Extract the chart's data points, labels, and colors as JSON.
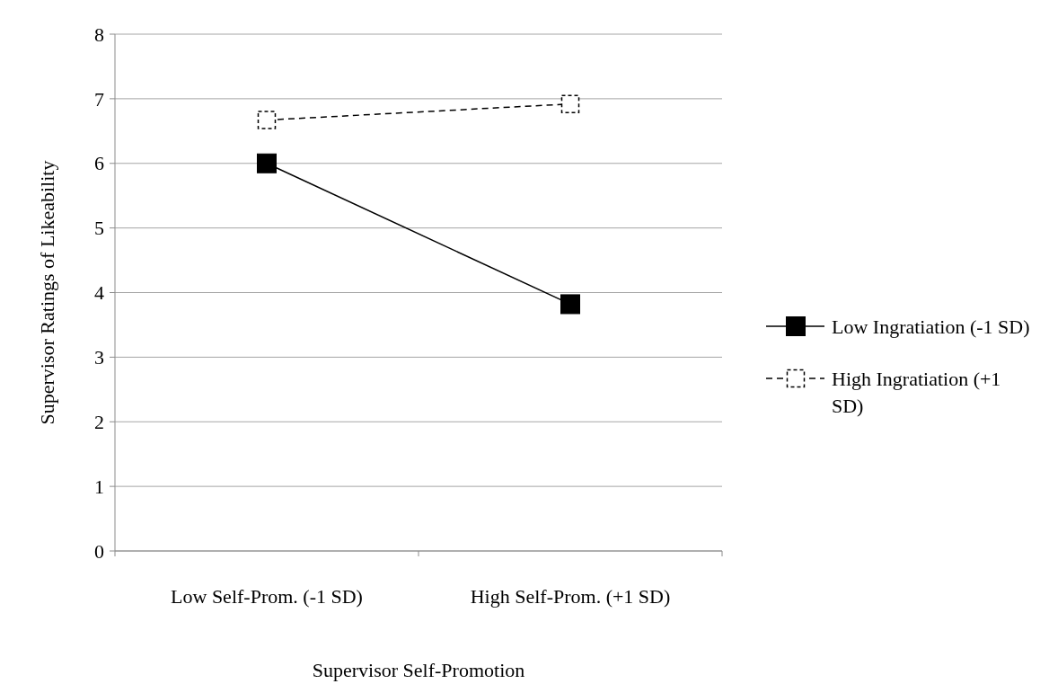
{
  "chart_data": {
    "type": "line",
    "xlabel": "Supervisor Self-Promotion",
    "ylabel": "Supervisor Ratings of Likeability",
    "categories": [
      "Low Self-Prom. (-1 SD)",
      "High Self-Prom. (+1 SD)"
    ],
    "series": [
      {
        "name": "Low Ingratiation (-1 SD)",
        "color": "#000000",
        "values": [
          6.0,
          3.82
        ],
        "line_style": "solid"
      },
      {
        "name": "High Ingratiation (+1 SD)",
        "color": "#000000",
        "values": [
          6.67,
          6.92
        ],
        "line_style": "dashed"
      }
    ],
    "ylim": [
      0,
      8
    ],
    "yticks": [
      0,
      1,
      2,
      3,
      4,
      5,
      6,
      7,
      8
    ],
    "grid": "y",
    "legend": "right",
    "marker": "square"
  }
}
